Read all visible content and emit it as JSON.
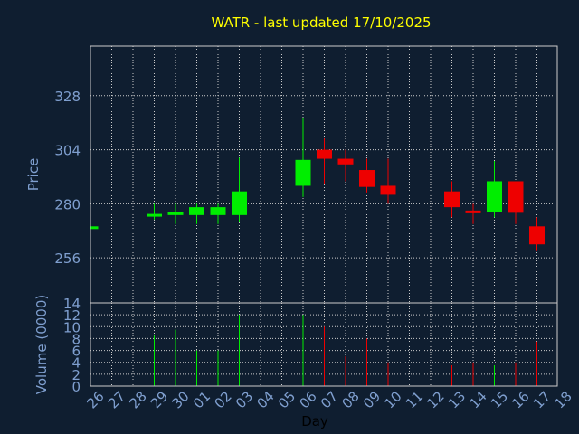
{
  "chart_data": {
    "type": "candlestick",
    "title": "WATR - last updated 17/10/2025",
    "xlabel": "Day",
    "price_panel": {
      "ylabel": "Price",
      "ylim": [
        236,
        350
      ],
      "yticks": [
        256,
        280,
        304,
        328
      ]
    },
    "volume_panel": {
      "ylabel": "Volume (0000)",
      "ylim": [
        0,
        14
      ],
      "yticks": [
        0,
        2,
        4,
        6,
        8,
        10,
        12,
        14
      ]
    },
    "days": [
      "26",
      "27",
      "28",
      "29",
      "30",
      "01",
      "02",
      "03",
      "04",
      "05",
      "06",
      "07",
      "08",
      "09",
      "10",
      "11",
      "12",
      "13",
      "14",
      "15",
      "16",
      "17",
      "18"
    ],
    "grid": true,
    "colors": {
      "background": "#0f1e30",
      "up": "#00ee00",
      "down": "#ee0000",
      "grid": "#cccccc",
      "title": "#ffff00",
      "axis_text": "#7f9fcf"
    },
    "candles": [
      {
        "day": "26",
        "open": 270,
        "high": 270,
        "low": 270,
        "close": 270,
        "volume": 0
      },
      {
        "day": "29",
        "open": 275,
        "high": 280,
        "low": 273,
        "close": 275.5,
        "volume": 8.5
      },
      {
        "day": "30",
        "open": 275,
        "high": 280,
        "low": 271,
        "close": 276.5,
        "volume": 9.5
      },
      {
        "day": "01",
        "open": 275,
        "high": 280,
        "low": 271,
        "close": 278.5,
        "volume": 6
      },
      {
        "day": "02",
        "open": 275,
        "high": 280,
        "low": 271,
        "close": 278.5,
        "volume": 6
      },
      {
        "day": "03",
        "open": 275,
        "high": 300.5,
        "low": 272,
        "close": 285.5,
        "volume": 12
      },
      {
        "day": "06",
        "open": 288,
        "high": 318,
        "low": 283,
        "close": 299.5,
        "volume": 12
      },
      {
        "day": "07",
        "open": 304,
        "high": 309,
        "low": 289,
        "close": 300,
        "volume": 10
      },
      {
        "day": "08",
        "open": 300,
        "high": 304,
        "low": 290,
        "close": 297.5,
        "volume": 5
      },
      {
        "day": "09",
        "open": 295,
        "high": 300,
        "low": 285,
        "close": 287.5,
        "volume": 8
      },
      {
        "day": "10",
        "open": 288,
        "high": 300,
        "low": 280,
        "close": 284,
        "volume": 4
      },
      {
        "day": "13",
        "open": 285.5,
        "high": 290,
        "low": 274,
        "close": 278.5,
        "volume": 3.5
      },
      {
        "day": "14",
        "open": 277,
        "high": 280,
        "low": 271,
        "close": 276.5,
        "volume": 4
      },
      {
        "day": "15",
        "open": 276.5,
        "high": 299,
        "low": 274,
        "close": 290,
        "volume": 3.5
      },
      {
        "day": "16",
        "open": 290,
        "high": 290,
        "low": 271,
        "close": 276,
        "volume": 4
      },
      {
        "day": "17",
        "open": 270,
        "high": 274,
        "low": 259,
        "close": 262,
        "volume": 7.5
      }
    ]
  }
}
